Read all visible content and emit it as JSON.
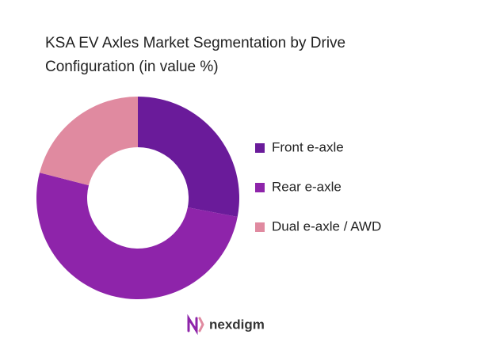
{
  "chart_data": {
    "type": "donut",
    "title": "KSA EV Axles Market Segmentation by Drive Configuration (in value %)",
    "categories": [
      "Front e-axle",
      "Rear e-axle",
      "Dual e-axle / AWD"
    ],
    "values": [
      28,
      51,
      21
    ],
    "colors": [
      "#6a1b9a",
      "#8e24aa",
      "#e08aa0"
    ],
    "legend": "right"
  },
  "logo": "nexdigm"
}
